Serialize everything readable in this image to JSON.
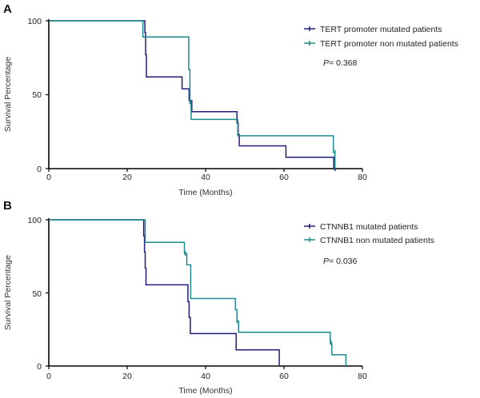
{
  "colors": {
    "mutated": "#1f1f7a",
    "non_mutated": "#1f8a8e",
    "axis": "#000000"
  },
  "chart_data": [
    {
      "type": "line",
      "panel_label": "A",
      "xlabel": "Time (Months)",
      "ylabel": "Survival Percentage",
      "xlim": [
        0,
        80
      ],
      "ylim": [
        0,
        100
      ],
      "xticks": [
        "0",
        "20",
        "40",
        "60",
        "80"
      ],
      "yticks": [
        "0",
        "50",
        "100"
      ],
      "p_prefix": "P",
      "p_value": "= 0.368",
      "series": [
        {
          "name": "TERT promoter mutated patients",
          "color_key": "mutated",
          "steps": [
            [
              0,
              100
            ],
            [
              24.5,
              100
            ],
            [
              24.5,
              92
            ],
            [
              24.7,
              92
            ],
            [
              24.7,
              77
            ],
            [
              24.9,
              77
            ],
            [
              24.9,
              62
            ],
            [
              34,
              62
            ],
            [
              34,
              54
            ],
            [
              35.8,
              54
            ],
            [
              35.8,
              46
            ],
            [
              36.5,
              46
            ],
            [
              36.5,
              38.5
            ],
            [
              48,
              38.5
            ],
            [
              48,
              31
            ],
            [
              48.3,
              31
            ],
            [
              48.3,
              23
            ],
            [
              48.6,
              23
            ],
            [
              48.6,
              15.4
            ],
            [
              60.5,
              15.4
            ],
            [
              60.5,
              7.7
            ],
            [
              72.7,
              7.7
            ],
            [
              72.7,
              0
            ]
          ],
          "censors": [
            [
              73,
              0
            ]
          ]
        },
        {
          "name": "TERT promoter non mutated patients",
          "color_key": "non_mutated",
          "steps": [
            [
              0,
              100
            ],
            [
              24,
              100
            ],
            [
              24,
              89
            ],
            [
              35.7,
              89
            ],
            [
              35.7,
              67
            ],
            [
              36,
              67
            ],
            [
              36,
              44
            ],
            [
              36.3,
              44
            ],
            [
              36.3,
              33.3
            ],
            [
              48.2,
              33.3
            ],
            [
              48.2,
              22.2
            ],
            [
              72.6,
              22.2
            ],
            [
              72.6,
              11
            ],
            [
              73,
              11
            ],
            [
              73,
              0
            ]
          ],
          "censors": [
            [
              36.2,
              45
            ],
            [
              73,
              11
            ]
          ]
        }
      ]
    },
    {
      "type": "line",
      "panel_label": "B",
      "xlabel": "Time (Months)",
      "ylabel": "Survival Percentage",
      "xlim": [
        0,
        80
      ],
      "ylim": [
        0,
        100
      ],
      "xticks": [
        "0",
        "20",
        "40",
        "60",
        "80"
      ],
      "yticks": [
        "0",
        "50",
        "100"
      ],
      "p_prefix": "P",
      "p_value": "= 0.036",
      "series": [
        {
          "name": "CTNNB1 mutated patients",
          "color_key": "mutated",
          "steps": [
            [
              0,
              100
            ],
            [
              24.2,
              100
            ],
            [
              24.2,
              89
            ],
            [
              24.4,
              89
            ],
            [
              24.4,
              78
            ],
            [
              24.6,
              78
            ],
            [
              24.6,
              67
            ],
            [
              24.8,
              67
            ],
            [
              24.8,
              55.5
            ],
            [
              35.5,
              55.5
            ],
            [
              35.5,
              44
            ],
            [
              35.8,
              44
            ],
            [
              35.8,
              33.3
            ],
            [
              36.1,
              33.3
            ],
            [
              36.1,
              22.2
            ],
            [
              47.8,
              22.2
            ],
            [
              47.8,
              11.1
            ],
            [
              58.8,
              11.1
            ],
            [
              58.8,
              0
            ]
          ],
          "censors": []
        },
        {
          "name": "CTNNB1 non mutated patients",
          "color_key": "non_mutated",
          "steps": [
            [
              0,
              100
            ],
            [
              24.6,
              100
            ],
            [
              24.6,
              84.6
            ],
            [
              34.6,
              84.6
            ],
            [
              34.6,
              77
            ],
            [
              35.2,
              77
            ],
            [
              35.2,
              69.2
            ],
            [
              36.2,
              69.2
            ],
            [
              36.2,
              46.2
            ],
            [
              47.6,
              46.2
            ],
            [
              47.6,
              38.5
            ],
            [
              48,
              38.5
            ],
            [
              48,
              30.8
            ],
            [
              48.4,
              30.8
            ],
            [
              48.4,
              23.1
            ],
            [
              71.8,
              23.1
            ],
            [
              71.8,
              15.4
            ],
            [
              72.2,
              15.4
            ],
            [
              72.2,
              7.7
            ],
            [
              75.8,
              7.7
            ],
            [
              75.8,
              0
            ]
          ],
          "censors": [
            [
              34.8,
              77
            ],
            [
              48,
              31
            ],
            [
              72,
              16
            ]
          ]
        }
      ]
    }
  ]
}
